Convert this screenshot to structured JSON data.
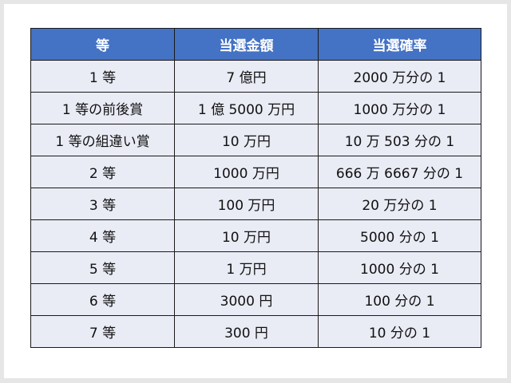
{
  "table": {
    "headers": [
      "等",
      "当選金額",
      "当選確率"
    ],
    "rows": [
      [
        "1 等",
        "7 億円",
        "2000 万分の 1"
      ],
      [
        "1 等の前後賞",
        "1 億 5000 万円",
        "1000 万分の 1"
      ],
      [
        "1 等の組違い賞",
        "10 万円",
        "10 万 503 分の 1"
      ],
      [
        "2 等",
        "1000 万円",
        "666 万 6667 分の 1"
      ],
      [
        "3 等",
        "100 万円",
        "20 万分の 1"
      ],
      [
        "4 等",
        "10 万円",
        "5000 分の 1"
      ],
      [
        "5 等",
        "1 万円",
        "1000 分の 1"
      ],
      [
        "6 等",
        "3000 円",
        "100 分の 1"
      ],
      [
        "7 等",
        "300 円",
        "10 分の 1"
      ]
    ]
  },
  "colors": {
    "header": "#4472c4",
    "row": "#e9ebf5"
  }
}
